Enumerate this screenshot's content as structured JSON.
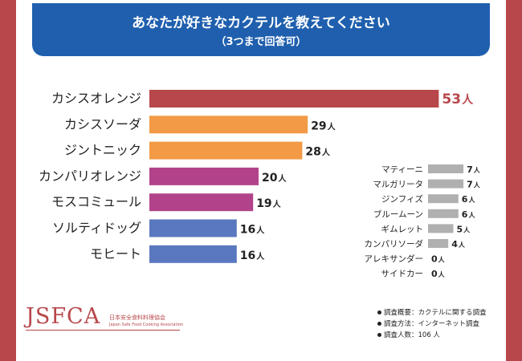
{
  "title": "あなたが好きなカクテルを教えてください",
  "subtitle": "（3つまで回答可）",
  "unit": "人",
  "chart_data": [
    {
      "type": "bar",
      "orientation": "horizontal",
      "categories": [
        "カシスオレンジ",
        "カシスソーダ",
        "ジントニック",
        "カンパリオレンジ",
        "モスコミュール",
        "ソルティドッグ",
        "モヒート"
      ],
      "values": [
        53,
        29,
        28,
        20,
        19,
        16,
        16
      ],
      "colors": [
        "#b8474b",
        "#f39a46",
        "#f39a46",
        "#b2438a",
        "#b2438a",
        "#5a78bf",
        "#5a78bf"
      ]
    },
    {
      "type": "bar",
      "orientation": "horizontal",
      "categories": [
        "マティーニ",
        "マルガリータ",
        "ジンフィズ",
        "ブルームーン",
        "ギムレット",
        "カンパリソーダ",
        "アレキサンダー",
        "サイドカー"
      ],
      "values": [
        7,
        7,
        6,
        6,
        5,
        4,
        0,
        0
      ],
      "colors": [
        "#b0b0b0"
      ]
    }
  ],
  "logo": {
    "main": "JSFCA",
    "jp": "日本安全食料料理協会",
    "en": "Japan Safe Food Cooking Association"
  },
  "notes": [
    "調査概要：カクテルに関する調査",
    "調査方法：インターネット調査",
    "調査人数：106 人"
  ]
}
